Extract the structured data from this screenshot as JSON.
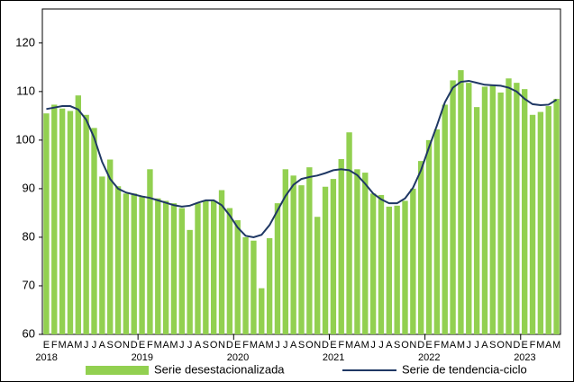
{
  "chart_data": {
    "type": "combo",
    "categories": [
      "E",
      "F",
      "M",
      "A",
      "M",
      "J",
      "J",
      "A",
      "S",
      "O",
      "N",
      "D",
      "E",
      "F",
      "M",
      "A",
      "M",
      "J",
      "J",
      "A",
      "S",
      "O",
      "N",
      "D",
      "E",
      "F",
      "M",
      "A",
      "M",
      "J",
      "J",
      "A",
      "S",
      "O",
      "N",
      "D",
      "E",
      "F",
      "M",
      "A",
      "M",
      "J",
      "J",
      "A",
      "S",
      "O",
      "N",
      "D",
      "E",
      "F",
      "M",
      "A",
      "M",
      "J",
      "J",
      "A",
      "S",
      "O",
      "N",
      "D",
      "E",
      "F",
      "M",
      "A",
      "M"
    ],
    "years": [
      "2018",
      null,
      null,
      null,
      null,
      null,
      null,
      null,
      null,
      null,
      null,
      null,
      "2019",
      null,
      null,
      null,
      null,
      null,
      null,
      null,
      null,
      null,
      null,
      null,
      "2020",
      null,
      null,
      null,
      null,
      null,
      null,
      null,
      null,
      null,
      null,
      null,
      "2021",
      null,
      null,
      null,
      null,
      null,
      null,
      null,
      null,
      null,
      null,
      null,
      "2022",
      null,
      null,
      null,
      null,
      null,
      null,
      null,
      null,
      null,
      null,
      null,
      "2023",
      null,
      null,
      null,
      null
    ],
    "series": [
      {
        "name": "Serie desestacionalizada",
        "type": "bar",
        "color": "#92d050",
        "values": [
          105.5,
          107.3,
          106.5,
          106,
          109.2,
          105.2,
          102.5,
          92.5,
          96,
          90.5,
          89,
          89,
          88.5,
          94,
          88,
          87.5,
          87,
          86,
          81.5,
          87,
          87.5,
          87.5,
          89.7,
          86,
          83.5,
          80,
          79.3,
          69.5,
          79.8,
          87,
          94,
          92.7,
          90.7,
          94.4,
          84.2,
          90.4,
          92,
          96.1,
          101.6,
          94,
          93.3,
          89,
          88.7,
          86.3,
          86.5,
          87.5,
          90,
          95.7,
          100,
          102.2,
          107.3,
          112.3,
          114.4,
          111.8,
          106.8,
          111,
          111.3,
          109.8,
          112.7,
          111.8,
          110.5,
          105.2,
          105.8,
          107,
          108.5
        ]
      },
      {
        "name": "Serie de tendencia-ciclo",
        "type": "line",
        "color": "#1f3864",
        "values": [
          106.4,
          106.7,
          107,
          107,
          106.3,
          104.2,
          100.5,
          95.5,
          92,
          90,
          89.2,
          88.8,
          88.4,
          88.1,
          87.6,
          87.1,
          86.6,
          86.3,
          86.5,
          87.1,
          87.6,
          87.6,
          86.6,
          84.5,
          82,
          80.3,
          80,
          80.5,
          82.5,
          85.5,
          88.5,
          90.8,
          92,
          92.4,
          92.7,
          93.2,
          93.8,
          94,
          93.8,
          92.8,
          91,
          89,
          87.8,
          87,
          87,
          88,
          90.2,
          93.8,
          98.5,
          103,
          107.8,
          110.8,
          112,
          112.2,
          111.8,
          111.4,
          111.3,
          111.2,
          110.8,
          110,
          108.5,
          107.4,
          107.2,
          107.3,
          108.3
        ]
      }
    ],
    "ylim": [
      60,
      127
    ],
    "yticks": [
      60,
      70,
      80,
      90,
      100,
      110,
      120
    ],
    "legend": "bottom"
  }
}
